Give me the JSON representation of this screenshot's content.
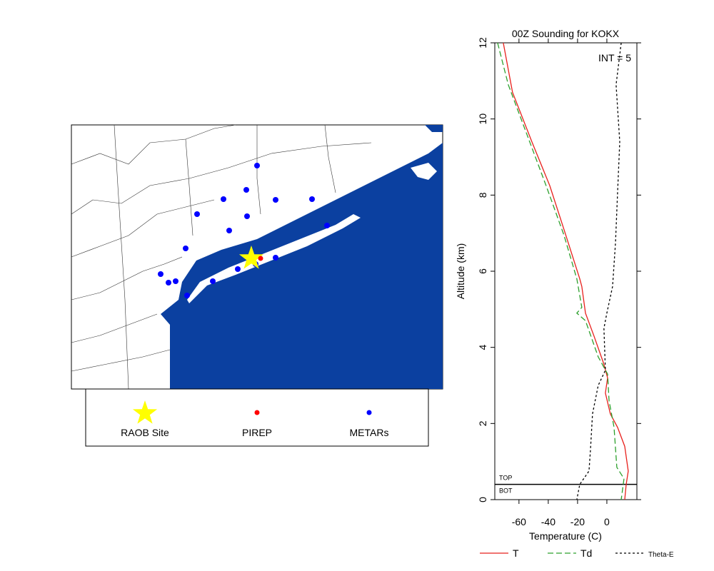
{
  "map": {
    "legend": [
      "RAOB Site",
      "PIREP",
      "METARs"
    ]
  },
  "chart_data": {
    "type": "line",
    "title": "00Z Sounding for KOKX",
    "xlabel": "Temperature (C)",
    "ylabel": "Altitude (km)",
    "annotation": "INT = 5",
    "reference_line": {
      "value": 0.4,
      "label_above": "TOP",
      "label_below": "BOT"
    },
    "xlim": [
      -76.5,
      20.5
    ],
    "xticks": [
      -60,
      -40,
      -20,
      0
    ],
    "ylim": [
      0,
      12
    ],
    "yticks": [
      0,
      2,
      4,
      6,
      8,
      10,
      12
    ],
    "series": [
      {
        "name": "T",
        "color": "#e8201c",
        "dash": "solid",
        "x": [
          -70.7,
          -64.4,
          -51.2,
          -39,
          -29.3,
          -18.5,
          -17.1,
          -14.6,
          -8.8,
          -2.4,
          0.5,
          -1,
          2.4,
          7.3,
          12.2,
          14.6,
          13.2,
          12.2
        ],
        "y": [
          12,
          10.7,
          9.4,
          8.25,
          7.1,
          5.8,
          5.6,
          4.9,
          4.3,
          3.6,
          3.2,
          2.8,
          2.25,
          1.9,
          1.4,
          0.75,
          0.4,
          0
        ]
      },
      {
        "name": "Td",
        "color": "#2ca02c",
        "dash": "dashed",
        "x": [
          -74.6,
          -67.3,
          -56.1,
          -41.5,
          -29.3,
          -20.5,
          -17.1,
          -20.5,
          -14.6,
          -5.9,
          0.5,
          1.5,
          4.9,
          6.8,
          11.7,
          9.8
        ],
        "y": [
          12,
          10.9,
          9.75,
          8.25,
          6.95,
          5.8,
          5.05,
          4.9,
          4.7,
          3.75,
          3.3,
          2.6,
          1.9,
          0.85,
          0.55,
          0
        ]
      },
      {
        "name": "Theta-E",
        "color": "#000000",
        "dash": "dotted",
        "x": [
          9.8,
          6.3,
          8.8,
          7.3,
          5.9,
          3.9,
          0,
          -2,
          -1,
          -5.9,
          -9.8,
          -11.2,
          -12.2,
          -18.5,
          -20.5
        ],
        "y": [
          12,
          10.9,
          9.4,
          8.05,
          6.75,
          5.6,
          4.9,
          4.5,
          3.4,
          3.0,
          2.25,
          1.3,
          0.75,
          0.4,
          0
        ]
      }
    ]
  }
}
